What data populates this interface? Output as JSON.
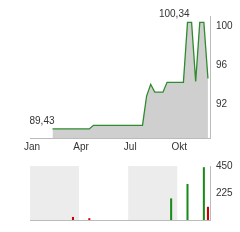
{
  "chart_data": [
    {
      "type": "line",
      "categories": [
        "Jan",
        null,
        null,
        null,
        null,
        null,
        null,
        null,
        null,
        null,
        null,
        null,
        "Apr",
        null,
        null,
        null,
        null,
        null,
        null,
        null,
        null,
        null,
        null,
        null,
        "Jul",
        null,
        null,
        null,
        null,
        null,
        null,
        null,
        null,
        null,
        null,
        null,
        "Okt",
        null,
        null,
        null,
        null,
        null,
        null,
        null
      ],
      "values": [
        null,
        null,
        null,
        null,
        null,
        89.43,
        89.43,
        89.43,
        89.43,
        89.43,
        89.43,
        89.43,
        89.43,
        89.43,
        89.43,
        89.8,
        89.8,
        89.8,
        89.8,
        89.8,
        89.8,
        89.8,
        89.8,
        89.8,
        89.8,
        89.8,
        89.8,
        89.8,
        92.8,
        94.0,
        93.2,
        93.2,
        93.2,
        94.2,
        94.2,
        94.2,
        94.2,
        94.2,
        100.34,
        100.34,
        94.3,
        100.34,
        100.34,
        94.6
      ],
      "color": "#2e8b2e",
      "ylim": [
        88.5,
        101
      ],
      "yticks": [
        92,
        96,
        100
      ],
      "grid": false,
      "annotations": [
        {
          "text": "100,34",
          "value": 100.34
        },
        {
          "text": "89,43",
          "value": 89.43
        }
      ]
    },
    {
      "type": "bar",
      "categories": [
        "Jan",
        null,
        null,
        null,
        null,
        null,
        null,
        null,
        null,
        null,
        null,
        null,
        "Apr",
        null,
        null,
        null,
        null,
        null,
        null,
        null,
        null,
        null,
        null,
        null,
        "Jul",
        null,
        null,
        null,
        null,
        null,
        null,
        null,
        null,
        null,
        null,
        null,
        "Okt",
        null,
        null,
        null,
        null,
        null,
        null,
        null
      ],
      "values": [
        0,
        0,
        0,
        0,
        0,
        0,
        0,
        0,
        0,
        0,
        25,
        0,
        0,
        0,
        15,
        0,
        0,
        0,
        0,
        0,
        0,
        0,
        0,
        0,
        0,
        0,
        0,
        0,
        0,
        0,
        0,
        0,
        0,
        0,
        180,
        0,
        0,
        0,
        300,
        0,
        0,
        0,
        440,
        110
      ],
      "colors": [
        "#1a8a1a",
        "#1a8a1a",
        "#1a8a1a",
        "#1a8a1a",
        "#1a8a1a",
        "#1a8a1a",
        "#1a8a1a",
        "#1a8a1a",
        "#1a8a1a",
        "#1a8a1a",
        "#cc0000",
        "#1a8a1a",
        "#1a8a1a",
        "#1a8a1a",
        "#cc0000",
        "#1a8a1a",
        "#1a8a1a",
        "#1a8a1a",
        "#1a8a1a",
        "#1a8a1a",
        "#1a8a1a",
        "#1a8a1a",
        "#1a8a1a",
        "#1a8a1a",
        "#1a8a1a",
        "#1a8a1a",
        "#1a8a1a",
        "#1a8a1a",
        "#1a8a1a",
        "#1a8a1a",
        "#1a8a1a",
        "#1a8a1a",
        "#1a8a1a",
        "#1a8a1a",
        "#1a8a1a",
        "#1a8a1a",
        "#1a8a1a",
        "#1a8a1a",
        "#1a8a1a",
        "#1a8a1a",
        "#1a8a1a",
        "#1a8a1a",
        "#1a8a1a",
        "#cc0000"
      ],
      "ylim": [
        0,
        450
      ],
      "yticks": [
        225,
        450
      ],
      "grid": false,
      "tick_labels": "y"
    }
  ]
}
